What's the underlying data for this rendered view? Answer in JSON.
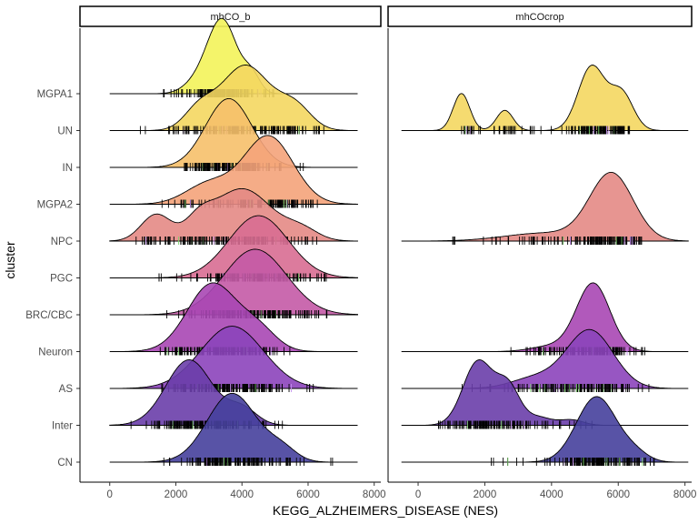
{
  "chart_data": {
    "type": "ridgeline",
    "xlabel": "KEGG_ALZHEIMERS_DISEASE (NES)",
    "ylabel": "cluster",
    "xlim": [
      -900,
      8200
    ],
    "xticks": [
      0,
      2000,
      4000,
      6000,
      8000
    ],
    "tick_labels": [
      "0",
      "2000",
      "4000",
      "6000",
      "8000"
    ],
    "grid": false,
    "categories": [
      "MGPA1",
      "UN",
      "IN",
      "MGPA2",
      "NPC",
      "PGC",
      "BRC/CBC",
      "Neuron",
      "AS",
      "Inter",
      "CN"
    ],
    "colors": {
      "MGPA1": "#f3f35a",
      "UN": "#f4d761",
      "IN": "#f6c06a",
      "MGPA2": "#f4a37a",
      "NPC": "#e48a85",
      "PGC": "#d86d92",
      "BRC/CBC": "#c45aa6",
      "Neuron": "#a847b4",
      "AS": "#8c44bb",
      "Inter": "#6a3eaa",
      "CN": "#46409c"
    },
    "panels": [
      {
        "title": "mhCO_b",
        "line_range": [
          0,
          7500
        ],
        "ridges": [
          {
            "cluster": "MGPA1",
            "peaks": [
              [
                3400,
                450,
                1.0
              ],
              [
                4300,
                250,
                0.22
              ],
              [
                2600,
                400,
                0.12
              ]
            ],
            "height": 1.15,
            "rug": [
              1600,
              5000
            ]
          },
          {
            "cluster": "UN",
            "peaks": [
              [
                4100,
                750,
                1.0
              ],
              [
                2700,
                450,
                0.3
              ],
              [
                5600,
                500,
                0.35
              ]
            ],
            "height": 1.0,
            "rug": [
              700,
              6700
            ]
          },
          {
            "cluster": "IN",
            "peaks": [
              [
                3600,
                700,
                1.0
              ]
            ],
            "height": 1.05,
            "rug": [
              2100,
              5900
            ]
          },
          {
            "cluster": "MGPA2",
            "peaks": [
              [
                4800,
                750,
                1.0
              ],
              [
                3000,
                700,
                0.3
              ]
            ],
            "height": 1.05,
            "rug": [
              1300,
              6900
            ]
          },
          {
            "cluster": "NPC",
            "peaks": [
              [
                4000,
                900,
                1.0
              ],
              [
                1400,
                450,
                0.5
              ],
              [
                2700,
                400,
                0.3
              ],
              [
                5800,
                500,
                0.2
              ]
            ],
            "height": 0.8,
            "rug": [
              700,
              6700
            ]
          },
          {
            "cluster": "PGC",
            "peaks": [
              [
                4500,
                900,
                1.0
              ]
            ],
            "height": 0.95,
            "rug": [
              1000,
              6800
            ]
          },
          {
            "cluster": "BRC/CBC",
            "peaks": [
              [
                4400,
                950,
                1.0
              ]
            ],
            "height": 1.0,
            "rug": [
              1500,
              6900
            ]
          },
          {
            "cluster": "Neuron",
            "peaks": [
              [
                3100,
                750,
                1.0
              ],
              [
                4500,
                550,
                0.3
              ]
            ],
            "height": 1.05,
            "rug": [
              1400,
              5700
            ]
          },
          {
            "cluster": "AS",
            "peaks": [
              [
                3700,
                950,
                1.0
              ]
            ],
            "height": 0.95,
            "rug": [
              1500,
              6300
            ]
          },
          {
            "cluster": "Inter",
            "peaks": [
              [
                2400,
                700,
                1.0
              ],
              [
                4000,
                450,
                0.25
              ]
            ],
            "height": 1.0,
            "rug": [
              500,
              5300
            ]
          },
          {
            "cluster": "CN",
            "peaks": [
              [
                3700,
                750,
                1.0
              ],
              [
                5200,
                450,
                0.18
              ]
            ],
            "height": 1.05,
            "rug": [
              1600,
              7000
            ]
          }
        ]
      },
      {
        "title": "mhCOcrop",
        "line_range": [
          -500,
          8100
        ],
        "ridges": [
          {
            "cluster": "UN",
            "peaks": [
              [
                1300,
                250,
                0.55
              ],
              [
                2600,
                250,
                0.3
              ],
              [
                5200,
                400,
                0.95
              ],
              [
                6100,
                350,
                0.55
              ]
            ],
            "height": 1.0,
            "rug": [
              1300,
              6400
            ]
          },
          {
            "cluster": "NPC",
            "peaks": [
              [
                5800,
                650,
                1.0
              ],
              [
                3800,
                1200,
                0.12
              ]
            ],
            "height": 1.05,
            "rug": [
              900,
              6800
            ]
          },
          {
            "cluster": "Neuron",
            "peaks": [
              [
                5250,
                500,
                1.0
              ],
              [
                4000,
                600,
                0.08
              ]
            ],
            "height": 1.05,
            "rug": [
              2100,
              7000
            ]
          },
          {
            "cluster": "AS",
            "peaks": [
              [
                5150,
                700,
                1.0
              ],
              [
                3500,
                700,
                0.18
              ]
            ],
            "height": 0.9,
            "rug": [
              700,
              7000
            ]
          },
          {
            "cluster": "Inter",
            "peaks": [
              [
                1800,
                450,
                0.95
              ],
              [
                2700,
                350,
                0.55
              ],
              [
                3600,
                400,
                0.12
              ],
              [
                4600,
                350,
                0.08
              ]
            ],
            "height": 1.0,
            "rug": [
              300,
              5700
            ]
          },
          {
            "cluster": "CN",
            "peaks": [
              [
                5350,
                600,
                1.0
              ],
              [
                6500,
                400,
                0.12
              ]
            ],
            "height": 1.0,
            "rug": [
              1800,
              7200
            ]
          }
        ]
      }
    ]
  }
}
